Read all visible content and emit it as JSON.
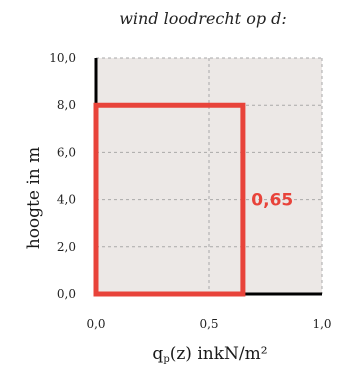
{
  "chart_data": {
    "type": "area",
    "title": "wind loodrecht op d:",
    "ylabel": "hoogte in m",
    "xlabel": {
      "prefix": "q",
      "subscript": "p",
      "suffix": "(z) inkN/m²"
    },
    "xlim": [
      0,
      1
    ],
    "ylim": [
      0,
      10
    ],
    "x_ticks": [
      {
        "value": 0,
        "label": "0,0"
      },
      {
        "value": 0.5,
        "label": "0,5"
      },
      {
        "value": 1,
        "label": "1,0"
      }
    ],
    "y_ticks": [
      {
        "value": 0,
        "label": "0,0"
      },
      {
        "value": 2,
        "label": "2,0"
      },
      {
        "value": 4,
        "label": "4,0"
      },
      {
        "value": 6,
        "label": "6,0"
      },
      {
        "value": 8,
        "label": "8,0"
      },
      {
        "value": 10,
        "label": "10,0"
      }
    ],
    "grid": true,
    "series": [
      {
        "points": [
          {
            "x": 0,
            "y": 0
          },
          {
            "x": 0,
            "y": 8
          },
          {
            "x": 0.65,
            "y": 8
          },
          {
            "x": 0.65,
            "y": 0
          }
        ],
        "label": "0,65",
        "label_at": {
          "x": 0.78,
          "y": 4.0
        }
      }
    ]
  },
  "colors": {
    "plot_bg": "#ece8e6",
    "grid": "#a9a9a9",
    "axis": "#000000",
    "series": "#e8433a",
    "text": "#1a1a1a"
  }
}
